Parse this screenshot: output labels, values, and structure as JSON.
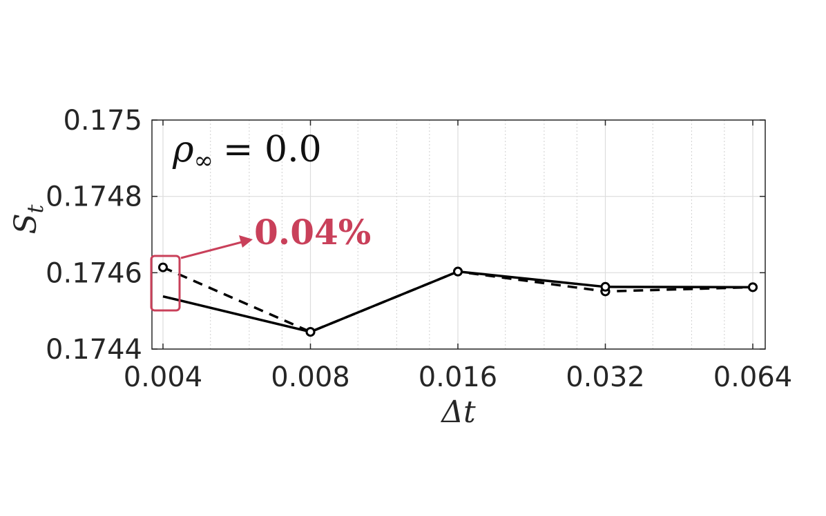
{
  "chart_data": {
    "type": "line",
    "xscale": "log2",
    "x": [
      0.004,
      0.008,
      0.016,
      0.032,
      0.064
    ],
    "xticklabels": [
      "0.004",
      "0.008",
      "0.016",
      "0.032",
      "0.064"
    ],
    "xlim": [
      0.004,
      0.064
    ],
    "ylim": [
      0.1744,
      0.175
    ],
    "yticks": [
      0.1744,
      0.1746,
      0.1748,
      0.175
    ],
    "yticklabels": [
      "0.1744",
      "0.1746",
      "0.1748",
      "0.175"
    ],
    "xlabel": "Δt",
    "ylabel": "S",
    "ylabel_sub": "t",
    "grid": true,
    "series": [
      {
        "style": "dashed",
        "marker": "circle",
        "values": [
          0.174614,
          0.174445,
          0.174603,
          0.174551,
          0.174562
        ]
      },
      {
        "style": "solid",
        "marker": "none-first",
        "values": [
          0.174538,
          0.174445,
          0.174603,
          0.174563,
          0.174562
        ]
      }
    ],
    "annotation": {
      "rho": "ρ",
      "rho_sub": "∞",
      "rho_value": "= 0.0",
      "difference": "0.04%",
      "highlight_color": "#c9405a"
    }
  }
}
